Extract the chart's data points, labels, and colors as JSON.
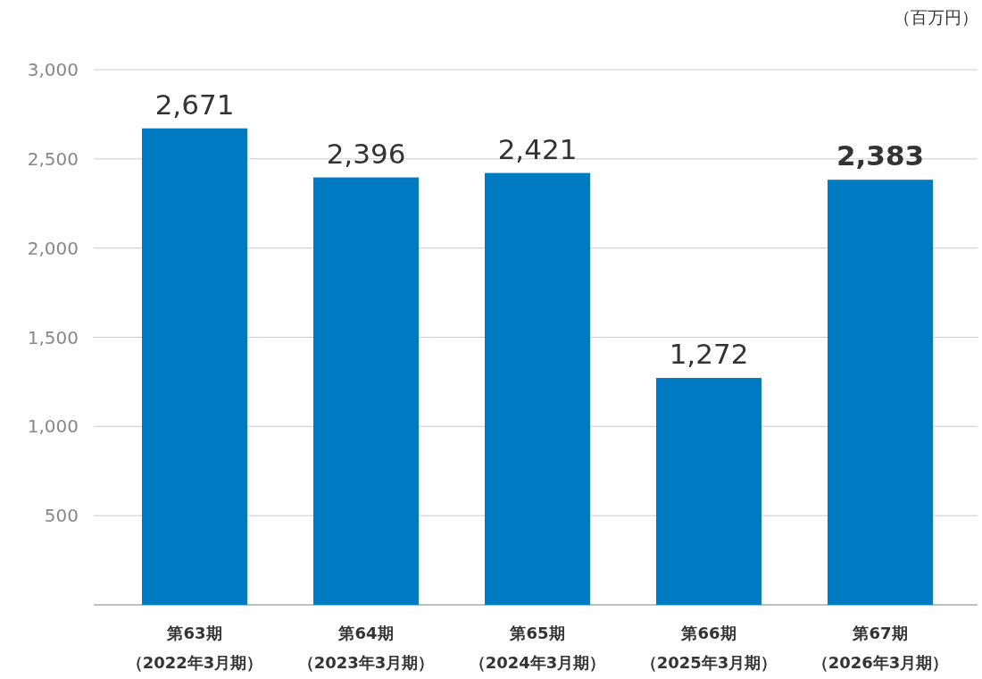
{
  "chart_data": {
    "type": "bar",
    "ylabel": "（百万円）",
    "categories": [
      "第63期（2022年3月期）",
      "第64期（2023年3月期）",
      "第65期（2024年3月期）",
      "第66期（2025年3月期）",
      "第67期（2026年3月期）"
    ],
    "values": [
      2671,
      2396,
      2421,
      1272,
      2383
    ],
    "value_labels": [
      "2,671",
      "2,396",
      "2,421",
      "1,272",
      "2,383"
    ],
    "color": "#007bc3",
    "ylim": [
      0,
      3000
    ],
    "yticks": [
      {
        "value": 0,
        "label": null
      },
      500,
      {
        "value": 1000,
        "label": "1,000"
      },
      {
        "value": 1500,
        "label": "1,500"
      },
      {
        "value": 2000,
        "label": "2,000"
      },
      {
        "value": 2500,
        "label": "2,500"
      },
      {
        "value": 3000,
        "label": "3,000"
      }
    ],
    "grid": "y"
  }
}
